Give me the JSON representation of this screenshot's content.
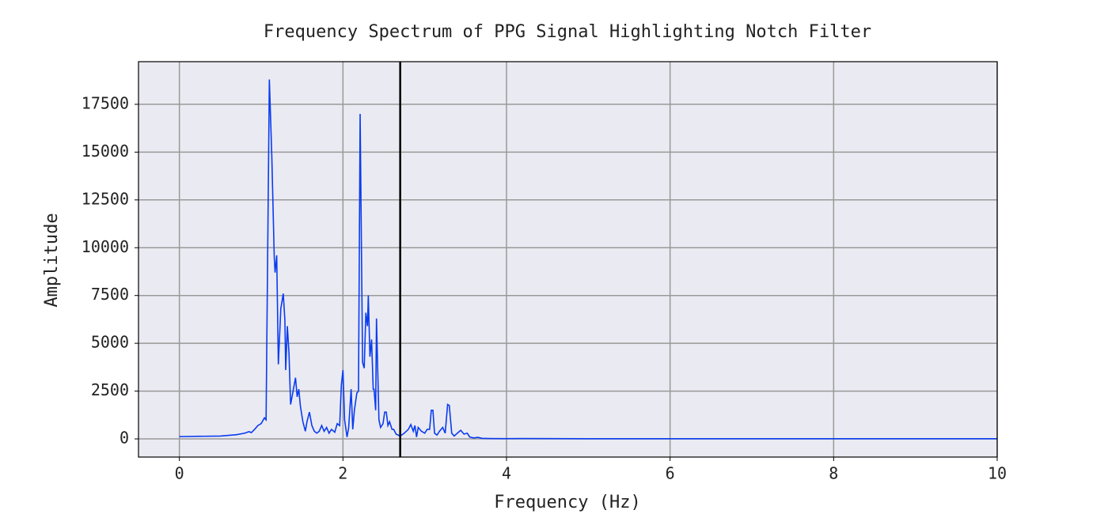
{
  "chart_data": {
    "type": "line",
    "title": "Frequency Spectrum of PPG Signal Highlighting Notch Filter",
    "x_label": "Frequency (Hz)",
    "y_label": "Amplitude",
    "xlim": [
      -0.5,
      10
    ],
    "ylim": [
      -950,
      19730
    ],
    "xticks": [
      0,
      2,
      4,
      6,
      8,
      10
    ],
    "yticks": [
      0,
      2500,
      5000,
      7500,
      10000,
      12500,
      15000,
      17500
    ],
    "grid": true,
    "notch_line_x": 2.7,
    "notch_line_color": "#000000",
    "series": [
      {
        "color": "#0a3cf0",
        "x": [
          0,
          0.5,
          0.7,
          0.8,
          0.85,
          0.88,
          0.92,
          0.96,
          1.0,
          1.04,
          1.06,
          1.1,
          1.13,
          1.16,
          1.17,
          1.19,
          1.21,
          1.24,
          1.27,
          1.29,
          1.3,
          1.32,
          1.34,
          1.36,
          1.39,
          1.42,
          1.44,
          1.46,
          1.48,
          1.51,
          1.54,
          1.56,
          1.59,
          1.62,
          1.65,
          1.68,
          1.71,
          1.74,
          1.77,
          1.8,
          1.83,
          1.86,
          1.9,
          1.93,
          1.96,
          1.98,
          2.0,
          2.02,
          2.05,
          2.07,
          2.1,
          2.12,
          2.14,
          2.17,
          2.19,
          2.21,
          2.24,
          2.26,
          2.28,
          2.3,
          2.31,
          2.33,
          2.35,
          2.37,
          2.38,
          2.4,
          2.41,
          2.44,
          2.46,
          2.49,
          2.51,
          2.53,
          2.55,
          2.57,
          2.6,
          2.62,
          2.65,
          2.7,
          2.75,
          2.8,
          2.83,
          2.86,
          2.88,
          2.9,
          2.92,
          2.96,
          3.0,
          3.03,
          3.06,
          3.08,
          3.1,
          3.12,
          3.15,
          3.18,
          3.22,
          3.25,
          3.28,
          3.3,
          3.33,
          3.36,
          3.4,
          3.44,
          3.48,
          3.52,
          3.55,
          3.6,
          3.65,
          3.7,
          3.8,
          4.0,
          4.2,
          5,
          7,
          10
        ],
        "values": [
          120,
          150,
          220,
          300,
          380,
          330,
          500,
          700,
          800,
          1100,
          1000,
          18800,
          14800,
          9500,
          8700,
          9600,
          3900,
          6800,
          7600,
          6200,
          3600,
          5900,
          4500,
          1800,
          2500,
          3200,
          2200,
          2600,
          1700,
          900,
          400,
          900,
          1400,
          700,
          400,
          300,
          400,
          700,
          400,
          600,
          300,
          500,
          350,
          800,
          700,
          2800,
          3600,
          1000,
          100,
          600,
          2600,
          500,
          1500,
          2400,
          2500,
          17000,
          4000,
          3700,
          6600,
          5900,
          7500,
          4300,
          5200,
          2600,
          2600,
          1500,
          6300,
          1000,
          600,
          800,
          1400,
          1400,
          700,
          900,
          500,
          500,
          250,
          150,
          300,
          500,
          750,
          400,
          700,
          100,
          600,
          400,
          300,
          500,
          500,
          1500,
          1500,
          300,
          200,
          400,
          600,
          300,
          1800,
          1750,
          300,
          150,
          300,
          450,
          250,
          300,
          100,
          50,
          80,
          30,
          20,
          15,
          20,
          10,
          10,
          10
        ]
      }
    ]
  }
}
